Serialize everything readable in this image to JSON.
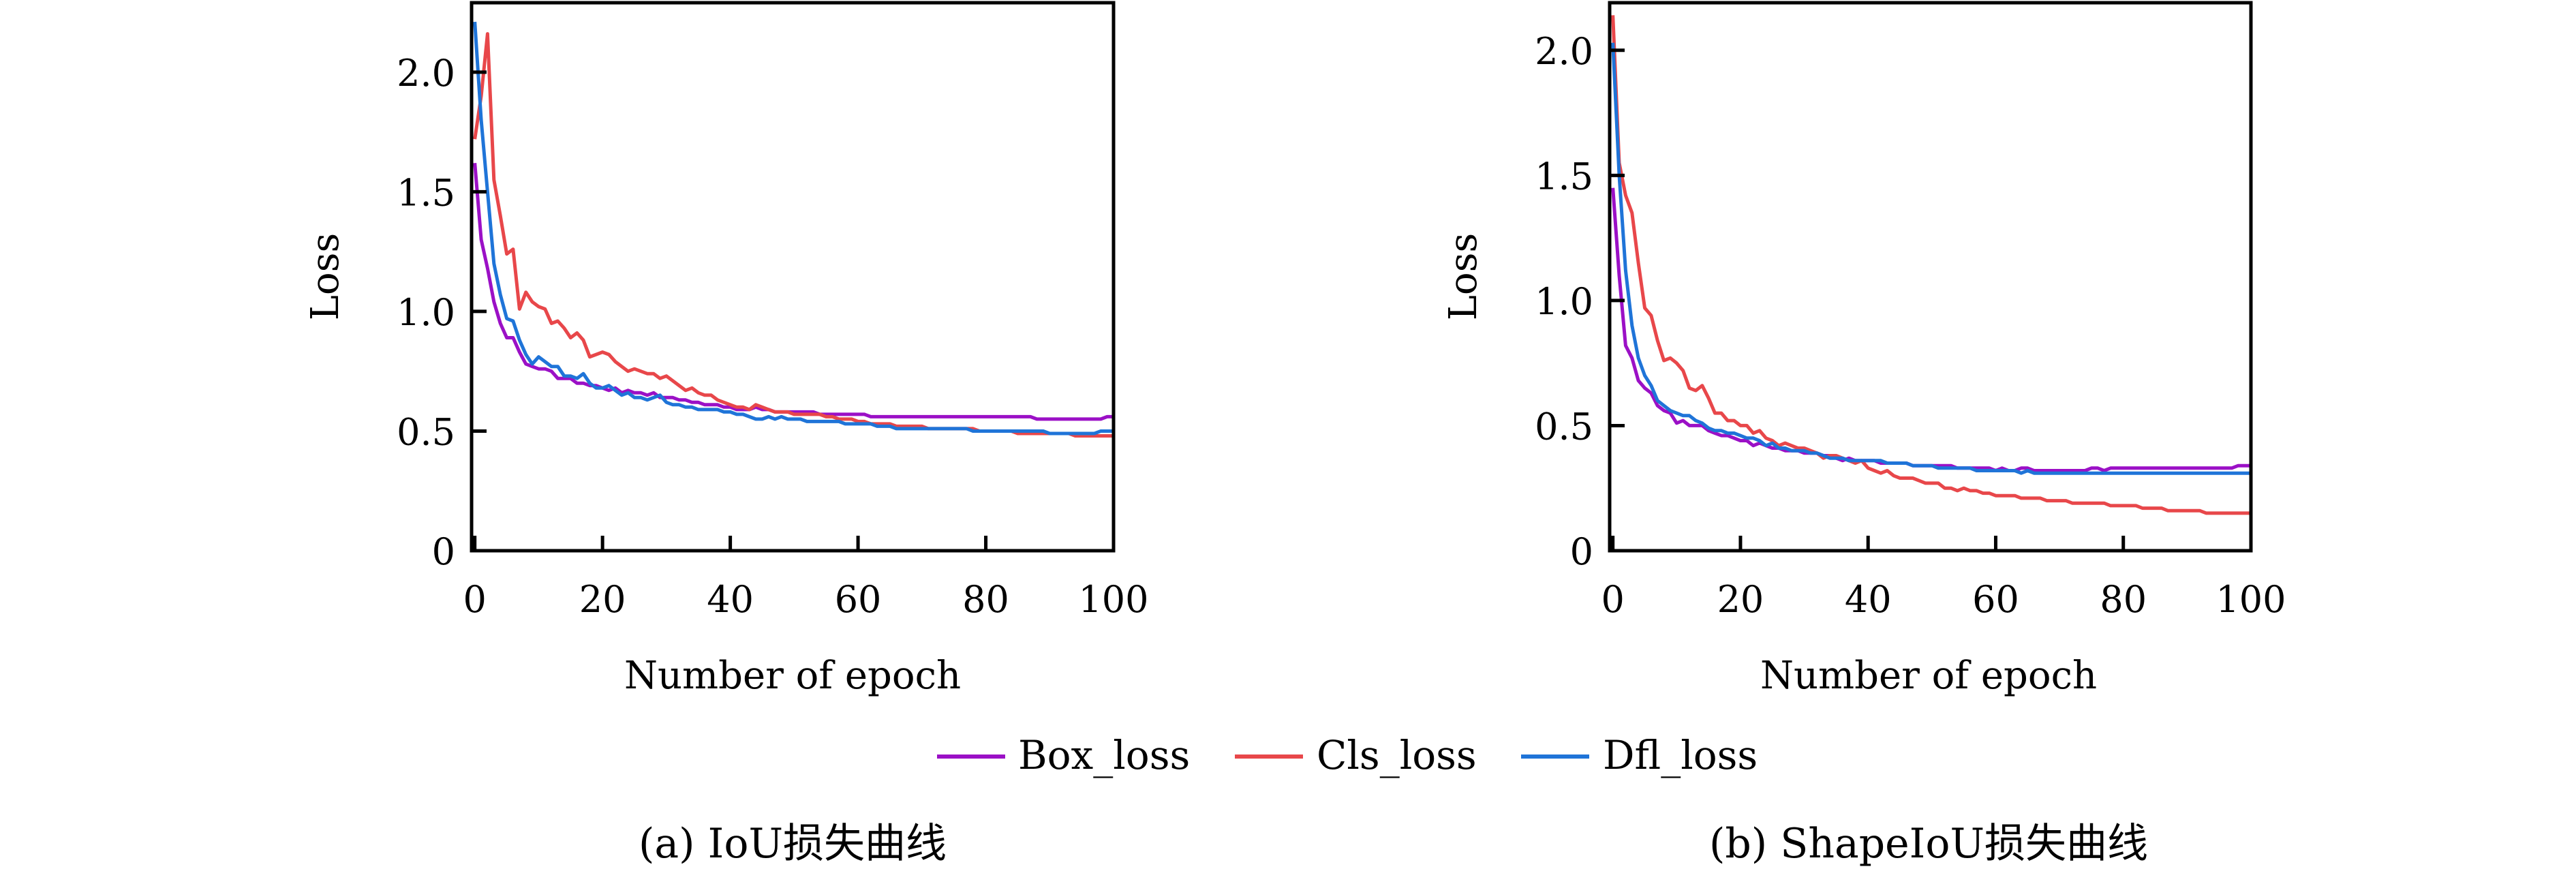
{
  "colors": {
    "box": "#9b10c6",
    "cls": "#e8474a",
    "dfl": "#1f74d8",
    "axis": "#000000"
  },
  "legend": [
    {
      "label": "Box_loss",
      "color": "#9b10c6"
    },
    {
      "label": "Cls_loss",
      "color": "#e8474a"
    },
    {
      "label": "Dfl_loss",
      "color": "#1f74d8"
    }
  ],
  "chart_data": [
    {
      "type": "line",
      "caption": "(a) IoU损失曲线",
      "xlabel": "Number of epoch",
      "ylabel": "Loss",
      "xlim": [
        -0.5,
        100
      ],
      "ylim": [
        0,
        2.29
      ],
      "xticks": [
        0,
        20,
        40,
        60,
        80,
        100
      ],
      "xtick_labels": [
        "0",
        "20",
        "40",
        "60",
        "80",
        "100"
      ],
      "yticks": [
        0,
        0.5,
        1.0,
        1.5,
        2.0
      ],
      "ytick_labels": [
        "0",
        "0.5",
        "1.0",
        "1.5",
        "2.0"
      ],
      "grid": false,
      "legend_position": "bottom-center",
      "series": [
        {
          "name": "Box_loss",
          "values": [
            1.62,
            1.3,
            1.18,
            1.04,
            0.95,
            0.89,
            0.89,
            0.83,
            0.78,
            0.77,
            0.76,
            0.76,
            0.75,
            0.72,
            0.72,
            0.72,
            0.7,
            0.7,
            0.69,
            0.69,
            0.68,
            0.67,
            0.68,
            0.66,
            0.67,
            0.66,
            0.66,
            0.65,
            0.66,
            0.64,
            0.64,
            0.64,
            0.63,
            0.63,
            0.62,
            0.62,
            0.61,
            0.61,
            0.61,
            0.6,
            0.6,
            0.59,
            0.59,
            0.59,
            0.6,
            0.59,
            0.59,
            0.58,
            0.58,
            0.58,
            0.58,
            0.58,
            0.58,
            0.58,
            0.57,
            0.57,
            0.57,
            0.57,
            0.57,
            0.57,
            0.57,
            0.57,
            0.56,
            0.56,
            0.56,
            0.56,
            0.56,
            0.56,
            0.56,
            0.56,
            0.56,
            0.56,
            0.56,
            0.56,
            0.56,
            0.56,
            0.56,
            0.56,
            0.56,
            0.56,
            0.56,
            0.56,
            0.56,
            0.56,
            0.56,
            0.56,
            0.56,
            0.56,
            0.55,
            0.55,
            0.55,
            0.55,
            0.55,
            0.55,
            0.55,
            0.55,
            0.55,
            0.55,
            0.55,
            0.56,
            0.56
          ]
        },
        {
          "name": "Cls_loss",
          "values": [
            1.72,
            1.9,
            2.16,
            1.55,
            1.4,
            1.24,
            1.26,
            1.01,
            1.08,
            1.04,
            1.02,
            1.01,
            0.95,
            0.96,
            0.93,
            0.89,
            0.91,
            0.88,
            0.81,
            0.82,
            0.83,
            0.82,
            0.79,
            0.77,
            0.75,
            0.76,
            0.75,
            0.74,
            0.74,
            0.72,
            0.73,
            0.71,
            0.69,
            0.67,
            0.68,
            0.66,
            0.65,
            0.65,
            0.63,
            0.62,
            0.61,
            0.6,
            0.6,
            0.59,
            0.61,
            0.6,
            0.59,
            0.58,
            0.58,
            0.58,
            0.57,
            0.57,
            0.57,
            0.57,
            0.57,
            0.56,
            0.56,
            0.55,
            0.55,
            0.55,
            0.54,
            0.54,
            0.53,
            0.53,
            0.53,
            0.53,
            0.52,
            0.52,
            0.52,
            0.52,
            0.52,
            0.51,
            0.51,
            0.51,
            0.51,
            0.51,
            0.51,
            0.51,
            0.51,
            0.5,
            0.5,
            0.5,
            0.5,
            0.5,
            0.5,
            0.49,
            0.49,
            0.49,
            0.49,
            0.49,
            0.49,
            0.49,
            0.49,
            0.49,
            0.48,
            0.48,
            0.48,
            0.48,
            0.48,
            0.48,
            0.48
          ]
        },
        {
          "name": "Dfl_loss",
          "values": [
            2.21,
            1.8,
            1.5,
            1.2,
            1.07,
            0.97,
            0.96,
            0.88,
            0.82,
            0.78,
            0.81,
            0.79,
            0.77,
            0.77,
            0.73,
            0.73,
            0.72,
            0.74,
            0.7,
            0.68,
            0.68,
            0.69,
            0.67,
            0.65,
            0.66,
            0.64,
            0.64,
            0.63,
            0.64,
            0.65,
            0.62,
            0.61,
            0.61,
            0.6,
            0.6,
            0.59,
            0.59,
            0.59,
            0.59,
            0.58,
            0.58,
            0.57,
            0.57,
            0.56,
            0.55,
            0.55,
            0.56,
            0.55,
            0.56,
            0.55,
            0.55,
            0.55,
            0.54,
            0.54,
            0.54,
            0.54,
            0.54,
            0.54,
            0.53,
            0.53,
            0.53,
            0.53,
            0.53,
            0.52,
            0.52,
            0.52,
            0.51,
            0.51,
            0.51,
            0.51,
            0.51,
            0.51,
            0.51,
            0.51,
            0.51,
            0.51,
            0.51,
            0.51,
            0.5,
            0.5,
            0.5,
            0.5,
            0.5,
            0.5,
            0.5,
            0.5,
            0.5,
            0.5,
            0.5,
            0.5,
            0.49,
            0.49,
            0.49,
            0.49,
            0.49,
            0.49,
            0.49,
            0.49,
            0.5,
            0.5,
            0.5
          ]
        }
      ]
    },
    {
      "type": "line",
      "caption": "(b) ShapeIoU损失曲线",
      "xlabel": "Number of epoch",
      "ylabel": "Loss",
      "xlim": [
        -0.5,
        100
      ],
      "ylim": [
        0,
        2.19
      ],
      "xticks": [
        0,
        20,
        40,
        60,
        80,
        100
      ],
      "xtick_labels": [
        "0",
        "20",
        "40",
        "60",
        "80",
        "100"
      ],
      "yticks": [
        0,
        0.5,
        1.0,
        1.5,
        2.0
      ],
      "ytick_labels": [
        "0",
        "0.5",
        "1.0",
        "1.5",
        "2.0"
      ],
      "grid": false,
      "legend_position": "bottom-center",
      "series": [
        {
          "name": "Box_loss",
          "values": [
            1.45,
            1.1,
            0.82,
            0.77,
            0.68,
            0.65,
            0.63,
            0.58,
            0.56,
            0.55,
            0.51,
            0.52,
            0.5,
            0.5,
            0.5,
            0.48,
            0.47,
            0.46,
            0.46,
            0.45,
            0.44,
            0.44,
            0.42,
            0.43,
            0.42,
            0.41,
            0.41,
            0.4,
            0.4,
            0.4,
            0.39,
            0.39,
            0.39,
            0.38,
            0.38,
            0.37,
            0.36,
            0.37,
            0.36,
            0.36,
            0.36,
            0.36,
            0.35,
            0.35,
            0.35,
            0.35,
            0.35,
            0.34,
            0.34,
            0.34,
            0.34,
            0.34,
            0.34,
            0.34,
            0.33,
            0.33,
            0.33,
            0.33,
            0.33,
            0.33,
            0.32,
            0.33,
            0.32,
            0.32,
            0.33,
            0.33,
            0.32,
            0.32,
            0.32,
            0.32,
            0.32,
            0.32,
            0.32,
            0.32,
            0.32,
            0.33,
            0.33,
            0.32,
            0.33,
            0.33,
            0.33,
            0.33,
            0.33,
            0.33,
            0.33,
            0.33,
            0.33,
            0.33,
            0.33,
            0.33,
            0.33,
            0.33,
            0.33,
            0.33,
            0.33,
            0.33,
            0.33,
            0.33,
            0.34,
            0.34,
            0.34
          ]
        },
        {
          "name": "Cls_loss",
          "values": [
            2.14,
            1.55,
            1.42,
            1.35,
            1.15,
            0.97,
            0.94,
            0.84,
            0.76,
            0.77,
            0.75,
            0.72,
            0.65,
            0.64,
            0.66,
            0.61,
            0.55,
            0.55,
            0.52,
            0.52,
            0.5,
            0.5,
            0.47,
            0.48,
            0.45,
            0.44,
            0.42,
            0.43,
            0.42,
            0.41,
            0.41,
            0.4,
            0.39,
            0.37,
            0.38,
            0.38,
            0.37,
            0.36,
            0.35,
            0.36,
            0.33,
            0.32,
            0.31,
            0.32,
            0.3,
            0.29,
            0.29,
            0.29,
            0.28,
            0.27,
            0.27,
            0.27,
            0.25,
            0.25,
            0.24,
            0.25,
            0.24,
            0.24,
            0.23,
            0.23,
            0.22,
            0.22,
            0.22,
            0.22,
            0.21,
            0.21,
            0.21,
            0.21,
            0.2,
            0.2,
            0.2,
            0.2,
            0.19,
            0.19,
            0.19,
            0.19,
            0.19,
            0.19,
            0.18,
            0.18,
            0.18,
            0.18,
            0.18,
            0.17,
            0.17,
            0.17,
            0.17,
            0.16,
            0.16,
            0.16,
            0.16,
            0.16,
            0.16,
            0.15,
            0.15,
            0.15,
            0.15,
            0.15,
            0.15,
            0.15,
            0.15
          ]
        },
        {
          "name": "Dfl_loss",
          "values": [
            2.03,
            1.5,
            1.12,
            0.9,
            0.77,
            0.7,
            0.66,
            0.6,
            0.58,
            0.56,
            0.55,
            0.54,
            0.54,
            0.52,
            0.51,
            0.49,
            0.48,
            0.48,
            0.47,
            0.47,
            0.46,
            0.45,
            0.45,
            0.44,
            0.42,
            0.43,
            0.41,
            0.41,
            0.4,
            0.4,
            0.4,
            0.39,
            0.39,
            0.38,
            0.37,
            0.37,
            0.37,
            0.36,
            0.36,
            0.36,
            0.36,
            0.36,
            0.36,
            0.35,
            0.35,
            0.35,
            0.35,
            0.34,
            0.34,
            0.34,
            0.34,
            0.33,
            0.33,
            0.33,
            0.33,
            0.33,
            0.33,
            0.32,
            0.32,
            0.32,
            0.32,
            0.32,
            0.32,
            0.32,
            0.31,
            0.32,
            0.31,
            0.31,
            0.31,
            0.31,
            0.31,
            0.31,
            0.31,
            0.31,
            0.31,
            0.31,
            0.31,
            0.31,
            0.31,
            0.31,
            0.31,
            0.31,
            0.31,
            0.31,
            0.31,
            0.31,
            0.31,
            0.31,
            0.31,
            0.31,
            0.31,
            0.31,
            0.31,
            0.31,
            0.31,
            0.31,
            0.31,
            0.31,
            0.31,
            0.31,
            0.31
          ]
        }
      ]
    }
  ]
}
